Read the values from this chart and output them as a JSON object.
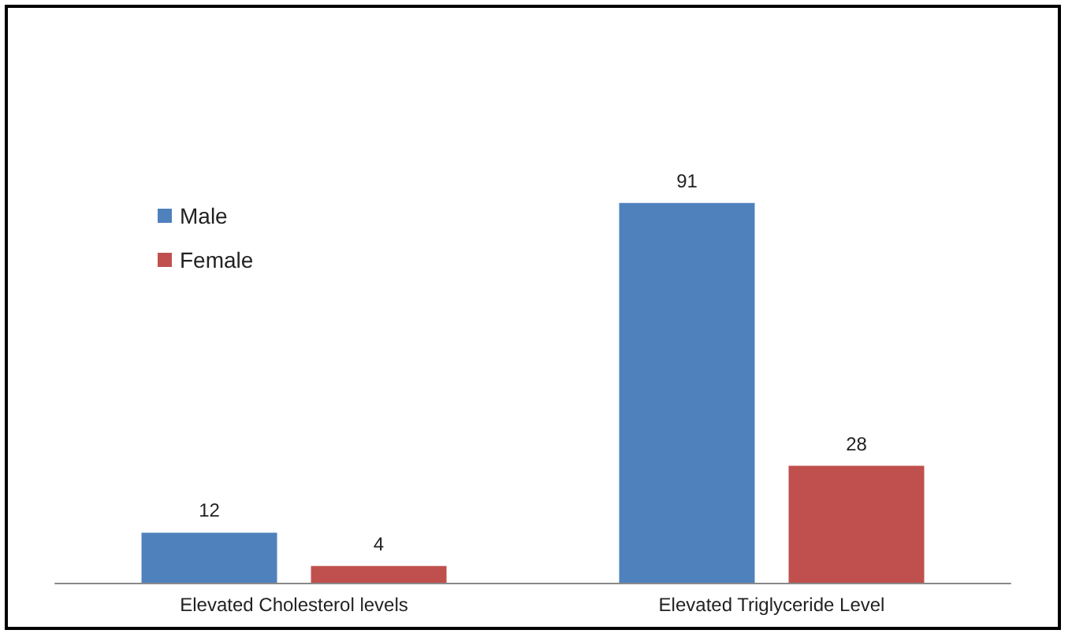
{
  "chart_data": {
    "type": "bar",
    "categories": [
      "Elevated Cholesterol levels",
      "Elevated Triglyceride Level"
    ],
    "series": [
      {
        "name": "Male",
        "color": "#4f81bd",
        "values": [
          12,
          91
        ]
      },
      {
        "name": "Female",
        "color": "#c0504d",
        "values": [
          4,
          28
        ]
      }
    ],
    "data_labels": true,
    "legend": "top left"
  }
}
